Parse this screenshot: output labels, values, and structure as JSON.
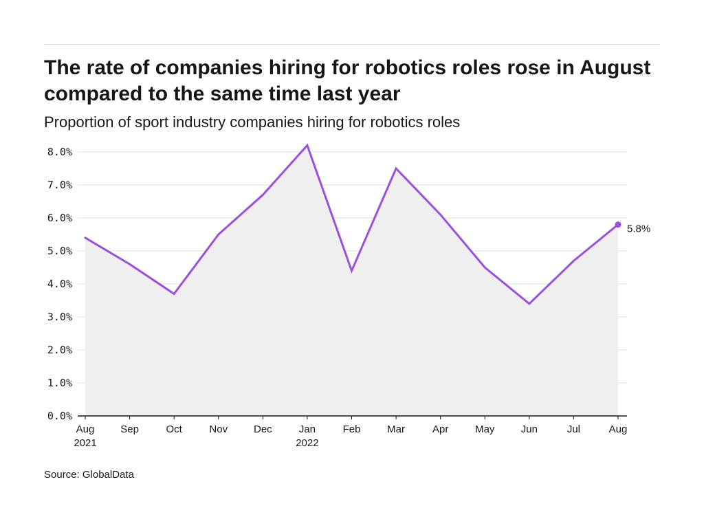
{
  "header": {
    "title": "The rate of companies hiring for robotics roles rose in August compared to the same time last year",
    "subtitle": "Proportion of sport industry companies hiring for robotics roles"
  },
  "footer": {
    "source": "Source: GlobalData"
  },
  "colors": {
    "line": "#9b4fde",
    "area": "#efefef",
    "grid": "#dddddd",
    "axis": "#161616",
    "text": "#161616"
  },
  "chart_data": {
    "type": "area",
    "title": "The rate of companies hiring for robotics roles rose in August compared to the same time last year",
    "subtitle": "Proportion of sport industry companies hiring for robotics roles",
    "categories": [
      [
        "Aug",
        "2021"
      ],
      [
        "Sep"
      ],
      [
        "Oct"
      ],
      [
        "Nov"
      ],
      [
        "Dec"
      ],
      [
        "Jan",
        "2022"
      ],
      [
        "Feb"
      ],
      [
        "Mar"
      ],
      [
        "Apr"
      ],
      [
        "May"
      ],
      [
        "Jun"
      ],
      [
        "Jul"
      ],
      [
        "Aug"
      ]
    ],
    "values": [
      5.4,
      4.6,
      3.7,
      5.5,
      6.7,
      8.2,
      4.4,
      7.5,
      6.1,
      4.5,
      3.4,
      4.7,
      5.8
    ],
    "unit": "%",
    "ylim": [
      0,
      8
    ],
    "yticks": [
      0,
      1,
      2,
      3,
      4,
      5,
      6,
      7,
      8
    ],
    "ytick_labels": [
      "0.0%",
      "1.0%",
      "2.0%",
      "3.0%",
      "4.0%",
      "5.0%",
      "6.0%",
      "7.0%",
      "8.0%"
    ],
    "grid": true,
    "legend": "none",
    "end_label": "5.8%",
    "source": "Source: GlobalData"
  }
}
